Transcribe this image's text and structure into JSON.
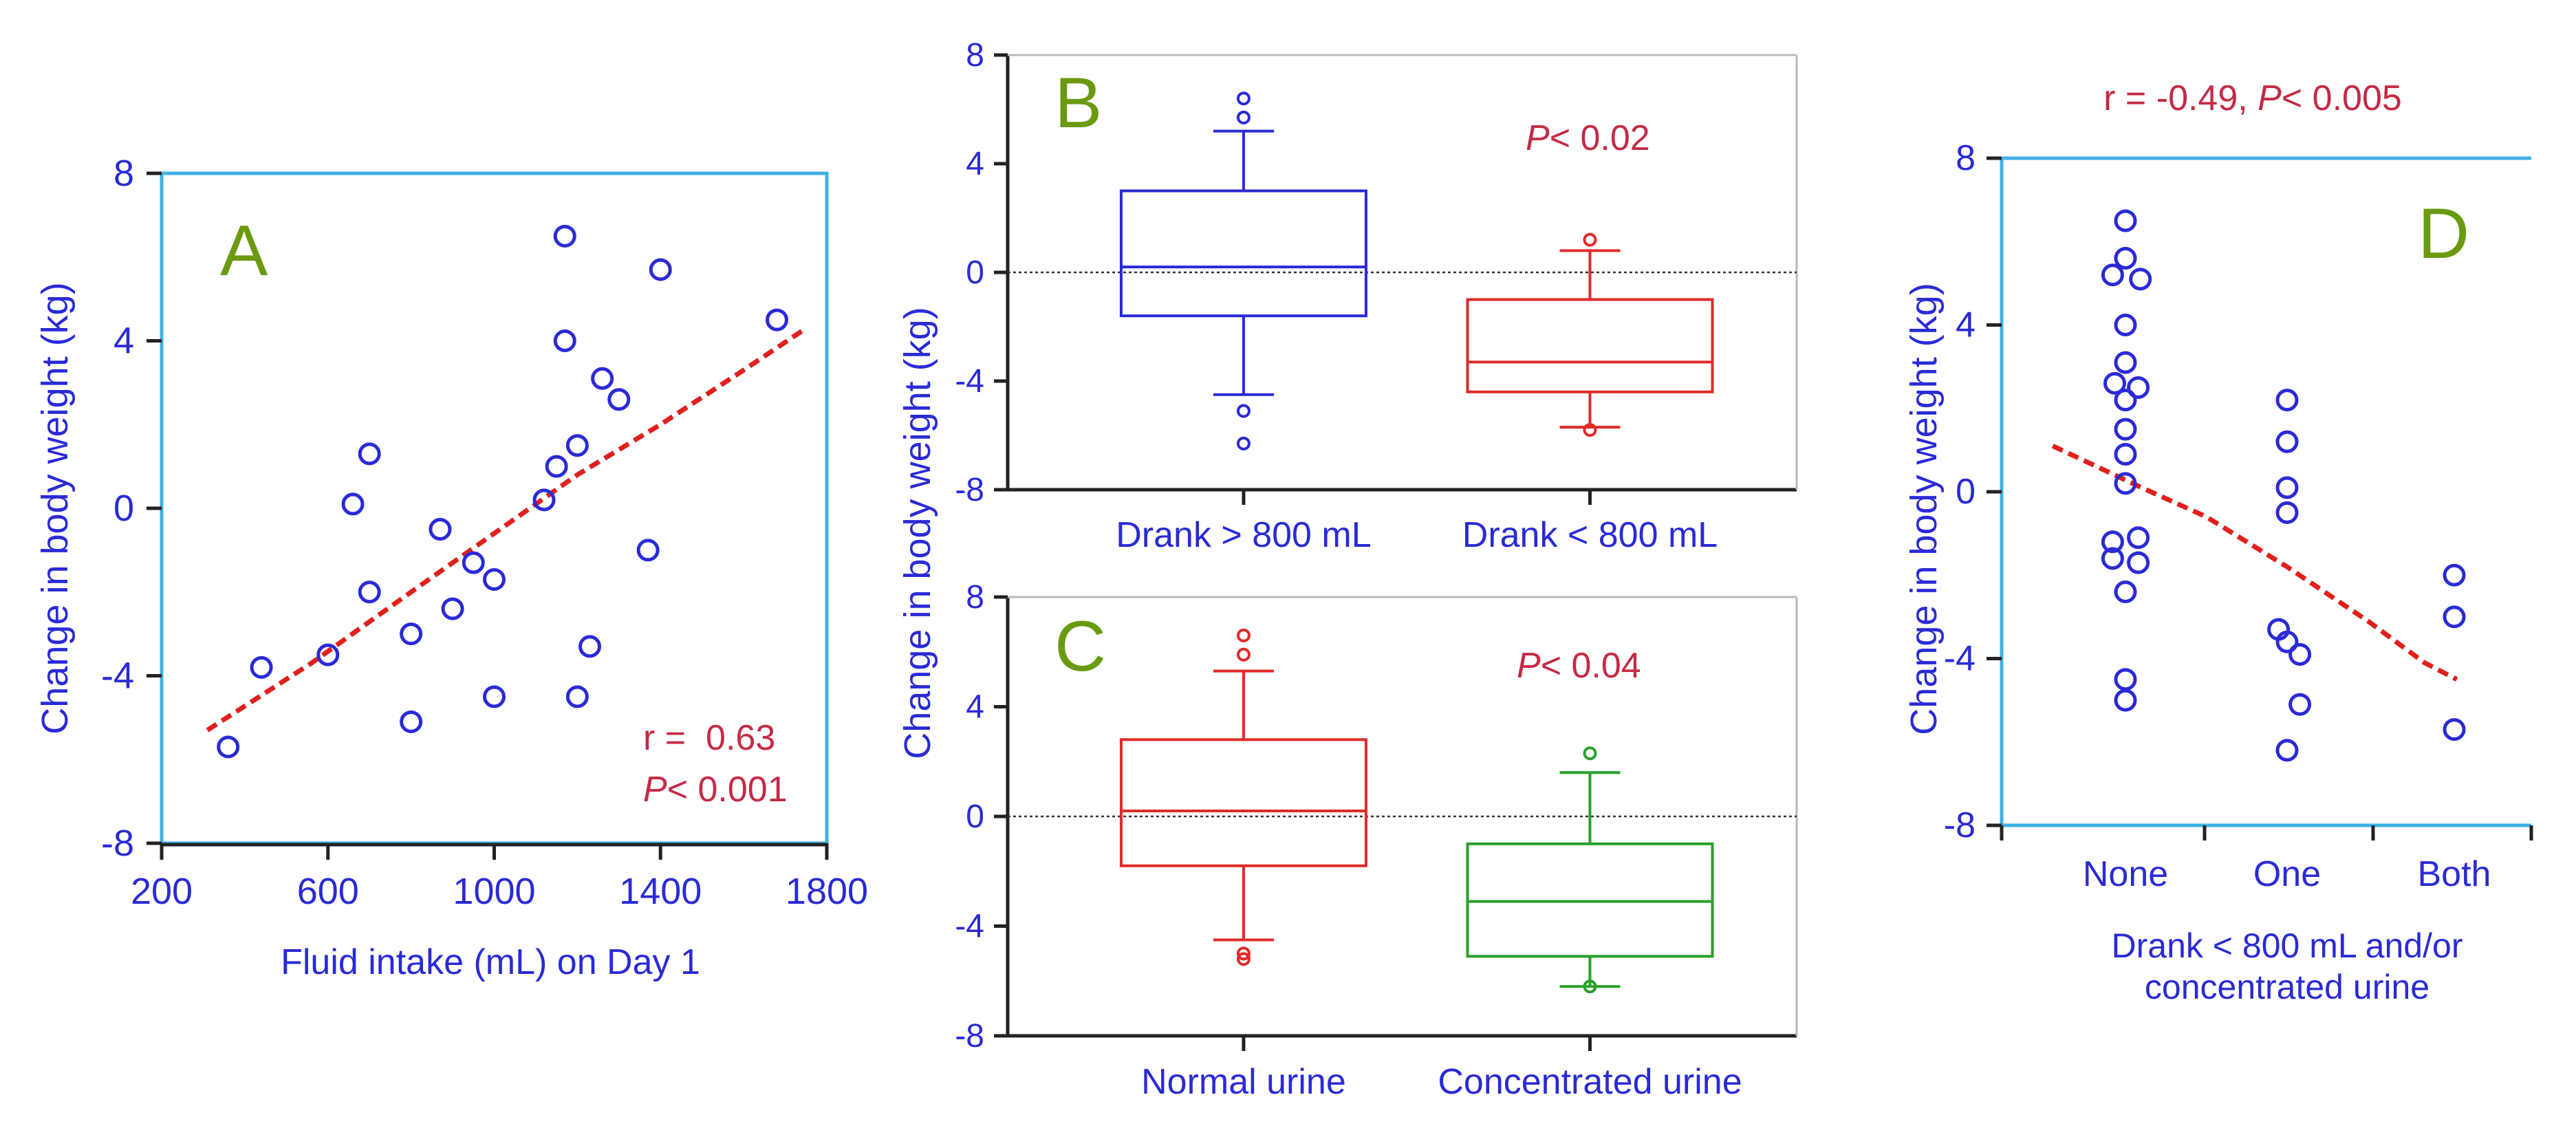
{
  "colors": {
    "axis_blue": "#2a2ad6",
    "frame_cyan": "#3fb0e6",
    "stat_red": "#c42a45",
    "trend_red": "#e0201c",
    "letter_green": "#6a9a10",
    "box_red": "#e02a2a",
    "box_green": "#2aa02a",
    "dark": "#222222"
  },
  "chart_data": [
    {
      "panel": "A",
      "type": "scatter",
      "letter": "A",
      "xlabel": "Fluid intake (mL) on Day 1",
      "ylabel": "Change in body weight (kg)",
      "xlim": [
        200,
        1800
      ],
      "ylim": [
        -8,
        8
      ],
      "x_ticks": [
        200,
        600,
        1000,
        1400,
        1800
      ],
      "y_ticks": [
        8,
        4,
        0,
        -4,
        -8
      ],
      "y_tick_labels": [
        "8",
        "4",
        "0",
        "-4",
        "-8"
      ],
      "points": [
        [
          360,
          -5.7
        ],
        [
          440,
          -3.8
        ],
        [
          600,
          -3.5
        ],
        [
          660,
          0.1
        ],
        [
          700,
          1.3
        ],
        [
          700,
          -2.0
        ],
        [
          800,
          -3.0
        ],
        [
          800,
          -5.1
        ],
        [
          870,
          -0.5
        ],
        [
          900,
          -2.4
        ],
        [
          950,
          -1.3
        ],
        [
          1000,
          -1.7
        ],
        [
          1000,
          -4.5
        ],
        [
          1120,
          0.2
        ],
        [
          1150,
          1.0
        ],
        [
          1170,
          6.5
        ],
        [
          1170,
          4.0
        ],
        [
          1200,
          1.5
        ],
        [
          1200,
          -4.5
        ],
        [
          1230,
          -3.3
        ],
        [
          1260,
          3.1
        ],
        [
          1300,
          2.6
        ],
        [
          1370,
          -1.0
        ],
        [
          1400,
          5.7
        ],
        [
          1680,
          4.5
        ]
      ],
      "trend": [
        [
          310,
          -5.3
        ],
        [
          560,
          -3.7
        ],
        [
          800,
          -2.0
        ],
        [
          1000,
          -0.6
        ],
        [
          1200,
          0.8
        ],
        [
          1400,
          2.0
        ],
        [
          1600,
          3.3
        ],
        [
          1750,
          4.3
        ]
      ],
      "stats": {
        "r_label": "r =  0.63",
        "p_italic": "P",
        "p_rest": "< 0.001"
      }
    },
    {
      "panel": "B",
      "type": "box",
      "letter": "B",
      "ylim": [
        -8,
        8
      ],
      "y_ticks": [
        8,
        4,
        0,
        -4,
        -8
      ],
      "y_tick_labels": [
        "8",
        "4",
        "0",
        "-4",
        "-8"
      ],
      "categories": [
        "Drank > 800 mL",
        "Drank < 800 mL"
      ],
      "boxes": [
        {
          "name": "Drank > 800 mL",
          "color": "#2a2ad6",
          "whisker_low": -4.5,
          "q1": -1.6,
          "median": 0.2,
          "q3": 3.0,
          "whisker_high": 5.2,
          "outliers": [
            -5.1,
            -6.3,
            5.7,
            6.4
          ]
        },
        {
          "name": "Drank < 800 mL",
          "color": "#e02a2a",
          "whisker_low": -5.7,
          "q1": -4.4,
          "median": -3.3,
          "q3": -1.0,
          "whisker_high": 0.8,
          "outliers": [
            1.2,
            -5.8
          ]
        }
      ],
      "stats": {
        "p_italic": "P",
        "p_rest": "< 0.02"
      }
    },
    {
      "panel": "C",
      "type": "box",
      "letter": "C",
      "ylim": [
        -8,
        8
      ],
      "y_ticks": [
        8,
        4,
        0,
        -4,
        -8
      ],
      "y_tick_labels": [
        "8",
        "4",
        "0",
        "-4",
        "-8"
      ],
      "categories": [
        "Normal urine",
        "Concentrated urine"
      ],
      "boxes": [
        {
          "name": "Normal urine",
          "color": "#e02a2a",
          "whisker_low": -4.5,
          "q1": -1.8,
          "median": 0.2,
          "q3": 2.8,
          "whisker_high": 5.3,
          "outliers": [
            -5.0,
            -5.2,
            5.9,
            6.6
          ]
        },
        {
          "name": "Concentrated urine",
          "color": "#2aa02a",
          "whisker_low": -6.2,
          "q1": -5.1,
          "median": -3.1,
          "q3": -1.0,
          "whisker_high": 1.6,
          "outliers": [
            2.3,
            -6.2
          ]
        }
      ],
      "stats": {
        "p_italic": "P",
        "p_rest": "< 0.04"
      },
      "shared_ylabel": "Change in body weight (kg)"
    },
    {
      "panel": "D",
      "type": "scatter",
      "letter": "D",
      "title_prefix": "r = -0.49, ",
      "title_p_italic": "P",
      "title_p_rest": "< 0.005",
      "xlabel_line1": "Drank < 800 mL and/or",
      "xlabel_line2": "concentrated urine",
      "ylabel": "Change in body weight (kg)",
      "ylim": [
        -8,
        8
      ],
      "y_ticks": [
        8,
        4,
        0,
        -4,
        -8
      ],
      "y_tick_labels": [
        "8",
        "4",
        "0",
        "-4",
        "-8"
      ],
      "categories": [
        "None",
        "One",
        "Both"
      ],
      "points": [
        [
          "None",
          0,
          6.5
        ],
        [
          "None",
          -0.3,
          5.2
        ],
        [
          "None",
          0,
          5.6
        ],
        [
          "None",
          0.35,
          5.1
        ],
        [
          "None",
          0,
          4.0
        ],
        [
          "None",
          0,
          3.1
        ],
        [
          "None",
          -0.25,
          2.6
        ],
        [
          "None",
          0.3,
          2.5
        ],
        [
          "None",
          0,
          2.2
        ],
        [
          "None",
          0,
          1.5
        ],
        [
          "None",
          0,
          0.9
        ],
        [
          "None",
          0,
          0.2
        ],
        [
          "None",
          -0.3,
          -1.2
        ],
        [
          "None",
          0.3,
          -1.1
        ],
        [
          "None",
          -0.3,
          -1.6
        ],
        [
          "None",
          0.3,
          -1.7
        ],
        [
          "None",
          0,
          -2.4
        ],
        [
          "None",
          0,
          -4.5
        ],
        [
          "None",
          0,
          -5.0
        ],
        [
          "One",
          0,
          2.2
        ],
        [
          "One",
          0,
          1.2
        ],
        [
          "One",
          0,
          0.1
        ],
        [
          "One",
          0,
          -0.5
        ],
        [
          "One",
          -0.2,
          -3.3
        ],
        [
          "One",
          0,
          -3.6
        ],
        [
          "One",
          0.3,
          -3.9
        ],
        [
          "One",
          0.3,
          -5.1
        ],
        [
          "One",
          0,
          -6.2
        ],
        [
          "Both",
          0,
          -2.0
        ],
        [
          "Both",
          0,
          -3.0
        ],
        [
          "Both",
          0,
          -5.7
        ]
      ],
      "trend": [
        [
          -0.45,
          1.1
        ],
        [
          0.1,
          0.1
        ],
        [
          0.5,
          -0.6
        ],
        [
          1.0,
          -1.8
        ],
        [
          1.5,
          -3.1
        ],
        [
          1.85,
          -4.1
        ],
        [
          2.05,
          -4.5
        ]
      ]
    }
  ]
}
